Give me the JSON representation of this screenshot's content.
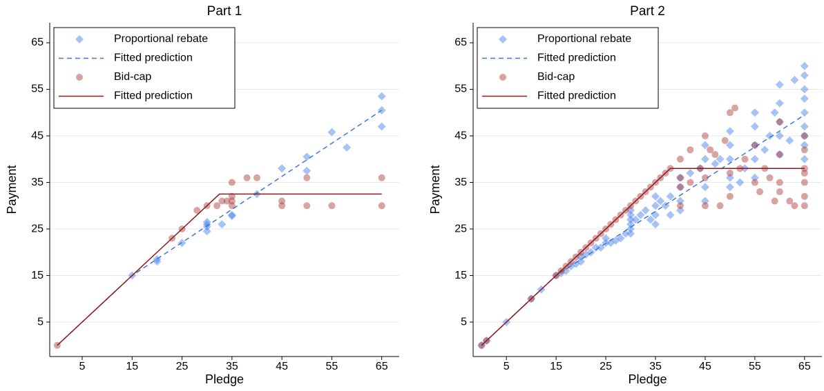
{
  "chart_data": [
    {
      "type": "scatter",
      "title": "Part 1",
      "xlabel": "Pledge",
      "ylabel": "Payment",
      "xlim": [
        -1.5,
        68.5
      ],
      "ylim": [
        -2.4,
        69.3
      ],
      "xticks": [
        5,
        15,
        25,
        35,
        45,
        55,
        65
      ],
      "yticks": [
        5,
        15,
        25,
        35,
        45,
        55,
        65
      ],
      "grid": true,
      "legend": "upper-left",
      "series": [
        {
          "name": "Proportional rebate",
          "marker": "diamond",
          "color": "#4f86ec",
          "opacity": 0.5,
          "x": [
            15,
            20,
            20,
            25,
            30,
            30,
            30,
            30,
            33,
            35,
            35,
            40,
            45,
            50,
            50,
            55,
            58,
            65,
            65,
            65
          ],
          "values": [
            15,
            18.5,
            18,
            22,
            24.5,
            25.5,
            26,
            26.5,
            26,
            27.8,
            28,
            32.5,
            38,
            37.5,
            40.5,
            45.8,
            42.5,
            47,
            50.5,
            53.5
          ]
        },
        {
          "name": "Fitted prediction",
          "marker": "line",
          "dash": true,
          "color": "#3a78d8",
          "x": [
            0,
            15,
            65
          ],
          "values": [
            0,
            15,
            50.5
          ]
        },
        {
          "name": "Bid-cap",
          "marker": "circle",
          "color": "#a83232",
          "opacity": 0.45,
          "x": [
            0,
            23,
            25,
            28,
            30,
            32,
            33,
            34,
            35,
            35,
            35,
            35,
            38,
            40,
            45,
            45,
            50,
            50,
            55,
            65,
            65
          ],
          "values": [
            0,
            23,
            25,
            29,
            30,
            30,
            31,
            31,
            30,
            31,
            35,
            32,
            36,
            36,
            30,
            31,
            30,
            36,
            30,
            30,
            36
          ]
        },
        {
          "name": "Fitted prediction",
          "marker": "line",
          "dash": false,
          "color": "#8b1a1a",
          "x": [
            0,
            32.5,
            65
          ],
          "values": [
            0,
            32.5,
            32.5
          ]
        }
      ]
    },
    {
      "type": "scatter",
      "title": "Part 2",
      "xlabel": "Pledge",
      "ylabel": "Payment",
      "xlim": [
        -1.7,
        68.5
      ],
      "ylim": [
        -2.4,
        69.3
      ],
      "xticks": [
        5,
        15,
        25,
        35,
        45,
        55,
        65
      ],
      "yticks": [
        5,
        15,
        25,
        35,
        45,
        55,
        65
      ],
      "grid": true,
      "legend": "upper-left",
      "series": [
        {
          "name": "Proportional rebate",
          "marker": "diamond",
          "color": "#4f86ec",
          "opacity": 0.5,
          "x": [
            0,
            1,
            5,
            10,
            12,
            15,
            16,
            17,
            18,
            19,
            20,
            20,
            21,
            22,
            23,
            24,
            25,
            25,
            26,
            27,
            28,
            29,
            30,
            30,
            30,
            30,
            30,
            30,
            31,
            32,
            33,
            34,
            35,
            35,
            35,
            35,
            36,
            37,
            38,
            38,
            40,
            40,
            40,
            40,
            42,
            44,
            45,
            45,
            45,
            45,
            47,
            48,
            50,
            50,
            50,
            50,
            50,
            52,
            53,
            55,
            55,
            55,
            55,
            55,
            57,
            58,
            59,
            60,
            60,
            60,
            60,
            60,
            62,
            63,
            65,
            65,
            65,
            65,
            65,
            65,
            65,
            65,
            65
          ],
          "values": [
            0,
            1,
            5,
            10,
            12,
            15,
            15.5,
            16,
            17,
            17.5,
            18,
            19,
            19.5,
            20,
            21,
            21,
            22,
            23,
            22,
            22.5,
            23,
            24,
            24,
            25,
            26,
            27,
            28,
            29,
            27,
            28,
            29,
            27,
            26,
            28,
            30,
            32,
            31,
            30,
            28,
            32,
            29,
            31,
            34,
            36,
            37,
            38,
            31,
            34,
            40,
            43,
            39,
            40,
            34,
            36,
            40,
            43,
            46,
            35,
            38,
            36,
            40,
            43,
            47,
            50,
            42,
            45,
            50,
            41,
            45,
            48,
            52,
            56,
            44,
            57,
            40,
            43,
            45,
            47,
            50,
            53,
            55,
            58,
            60
          ]
        },
        {
          "name": "Fitted prediction",
          "marker": "line",
          "dash": true,
          "color": "#3a78d8",
          "x": [
            0,
            15,
            65
          ],
          "values": [
            0,
            15,
            49.5
          ]
        },
        {
          "name": "Bid-cap",
          "marker": "circle",
          "color": "#a83232",
          "opacity": 0.45,
          "x": [
            0,
            1,
            10,
            15,
            16,
            17,
            18,
            19,
            20,
            21,
            22,
            23,
            24,
            25,
            26,
            27,
            28,
            29,
            30,
            31,
            32,
            33,
            34,
            35,
            36,
            37,
            38,
            40,
            40,
            40,
            40,
            42,
            42,
            44,
            45,
            45,
            45,
            46,
            47,
            48,
            49,
            50,
            50,
            50,
            51,
            52,
            53,
            55,
            55,
            56,
            57,
            58,
            59,
            60,
            60,
            60,
            60,
            62,
            63,
            65,
            65,
            65,
            65,
            65,
            65,
            65
          ],
          "values": [
            0,
            1,
            10,
            15,
            16,
            17,
            18,
            19,
            20,
            21,
            22,
            23,
            24,
            25,
            26,
            27,
            28,
            29,
            30,
            31,
            32,
            33,
            34,
            35,
            36,
            37,
            38,
            40,
            36,
            34,
            30,
            42,
            35,
            38,
            45,
            30,
            36,
            42,
            41,
            30,
            44,
            50,
            37,
            32,
            51,
            38,
            40,
            43,
            35,
            33,
            38,
            36,
            31,
            48,
            41,
            35,
            33,
            31,
            30,
            30,
            32,
            35,
            37,
            38,
            42,
            45
          ]
        },
        {
          "name": "Fitted prediction",
          "marker": "line",
          "dash": false,
          "color": "#8b1a1a",
          "x": [
            0,
            38,
            65
          ],
          "values": [
            0,
            38,
            38
          ]
        }
      ]
    }
  ]
}
